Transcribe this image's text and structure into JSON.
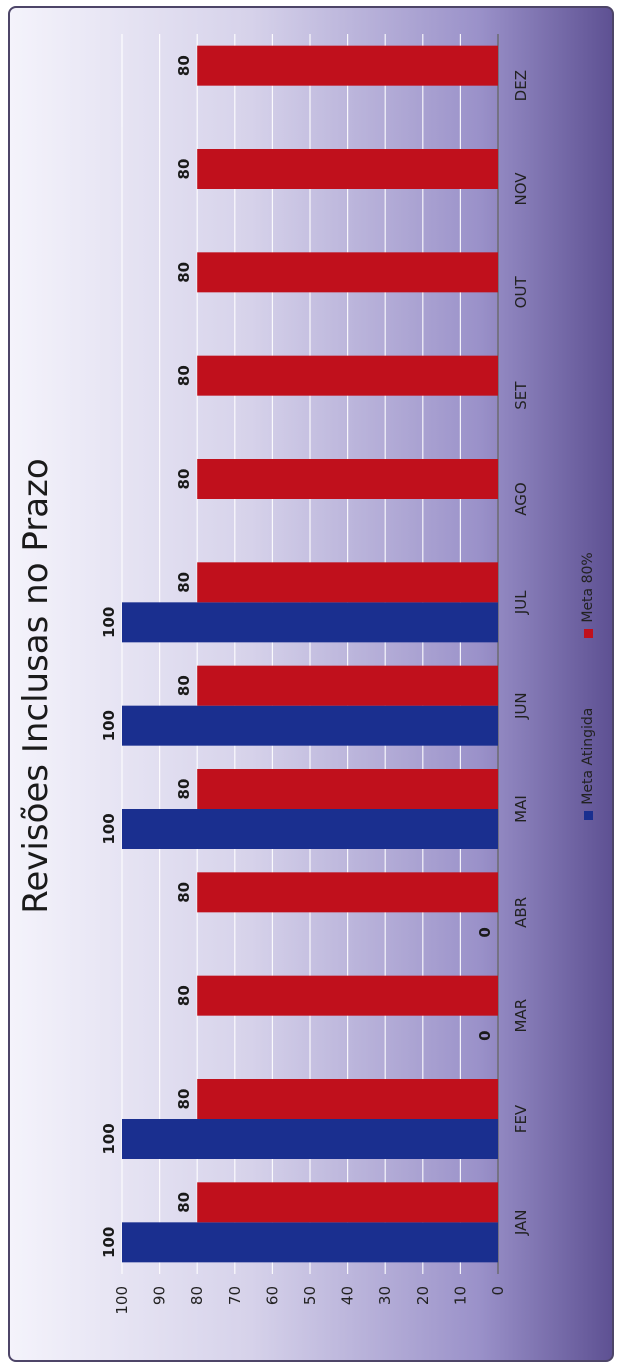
{
  "chart_data": {
    "type": "bar",
    "title": "Revisões Inclusas no Prazo",
    "categories": [
      "JAN",
      "FEV",
      "MAR",
      "ABR",
      "MAI",
      "JUN",
      "JUL",
      "AGO",
      "SET",
      "OUT",
      "NOV",
      "DEZ"
    ],
    "series": [
      {
        "name": "Meta Atingida",
        "color": "#1a2f8f",
        "values": [
          100,
          100,
          0,
          0,
          100,
          100,
          100,
          null,
          null,
          null,
          null,
          null
        ]
      },
      {
        "name": "Meta 80%",
        "color": "#c0101c",
        "values": [
          80,
          80,
          80,
          80,
          80,
          80,
          80,
          80,
          80,
          80,
          80,
          80
        ]
      }
    ],
    "ylim": [
      0,
      100
    ],
    "yticks": [
      0,
      10,
      20,
      30,
      40,
      50,
      60,
      70,
      80,
      90,
      100
    ],
    "grid": true,
    "legend_position": "bottom"
  }
}
